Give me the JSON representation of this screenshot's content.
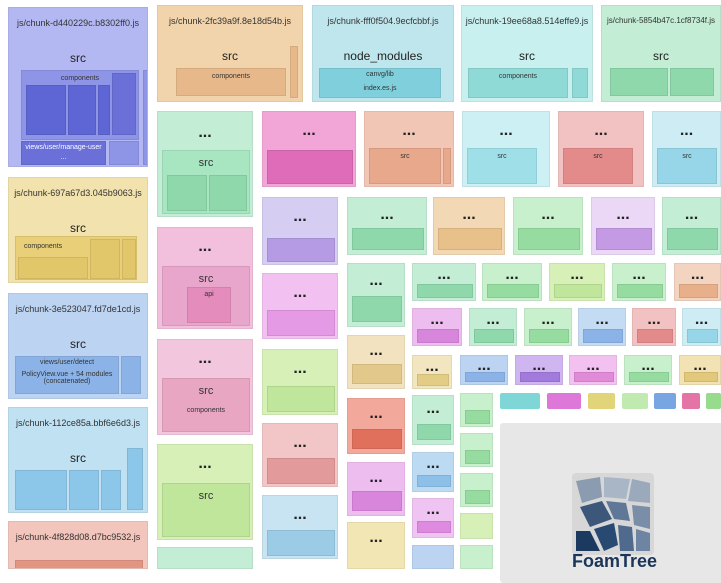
{
  "colors": {
    "purple": "#b4b8f2",
    "purpleDark": "#7b80d9",
    "orange": "#f2d4ac",
    "orangeDark": "#e7b98a",
    "teal": "#bfe6ec",
    "tealDark": "#7fd0dc",
    "green": "#c3edd4",
    "greenDark": "#8ed8ac",
    "yellow": "#f2e2ae",
    "yellowDark": "#e2c66a",
    "blue": "#bcd4f2",
    "blueDark": "#8cb3e8",
    "pink": "#f2bfdc",
    "pinkDark": "#e48cbc",
    "salmon": "#f2c6bc",
    "salmonDark": "#e39584",
    "lime": "#d6f0b8",
    "limeDark": "#a8d97c",
    "violet": "#dccbf3",
    "violetDark": "#b49be4"
  },
  "chunks": [
    {
      "id": "c1",
      "title": "js/chunk-d440229c.b8302ff0.js",
      "sub": "src",
      "labels": [
        "components",
        "views/user/manage-user",
        "..."
      ]
    },
    {
      "id": "c2",
      "title": "js/chunk-2fc39a9f.8e18d54b.js",
      "sub": "src",
      "labels": [
        "components"
      ]
    },
    {
      "id": "c3",
      "title": "js/chunk-fff0f504.9ecfcbbf.js",
      "sub": "node_modules",
      "labels": [
        "canvg/lib",
        "index.es.js"
      ]
    },
    {
      "id": "c4",
      "title": "js/chunk-19ee68a8.514effe9.js",
      "sub": "src",
      "labels": [
        "components"
      ]
    },
    {
      "id": "c5",
      "title": "js/chunk-5854b47c.1cf8734f.js",
      "sub": "src",
      "labels": [
        "..."
      ]
    },
    {
      "id": "c6",
      "title": "js/chunk-697a67d3.045b9063.js",
      "sub": "src",
      "labels": [
        "components"
      ]
    },
    {
      "id": "c7",
      "title": "js/chunk-3e523047.fd7de1cd.js",
      "sub": "src",
      "labels": [
        "views/user/detect",
        "PolicyView.vue + 54 modules (concatenated)"
      ]
    },
    {
      "id": "c8",
      "title": "js/chunk-112ce85a.bbf6e6d3.js",
      "sub": "src",
      "labels": [
        "..."
      ]
    },
    {
      "id": "c9",
      "title": "js/chunk-4f828d08.d7bc9532.js",
      "sub": "",
      "labels": []
    }
  ],
  "inner_labels": {
    "src": "src",
    "dots": "...",
    "api": "api",
    "components": "components"
  },
  "logo": {
    "text": "FoamTree"
  }
}
